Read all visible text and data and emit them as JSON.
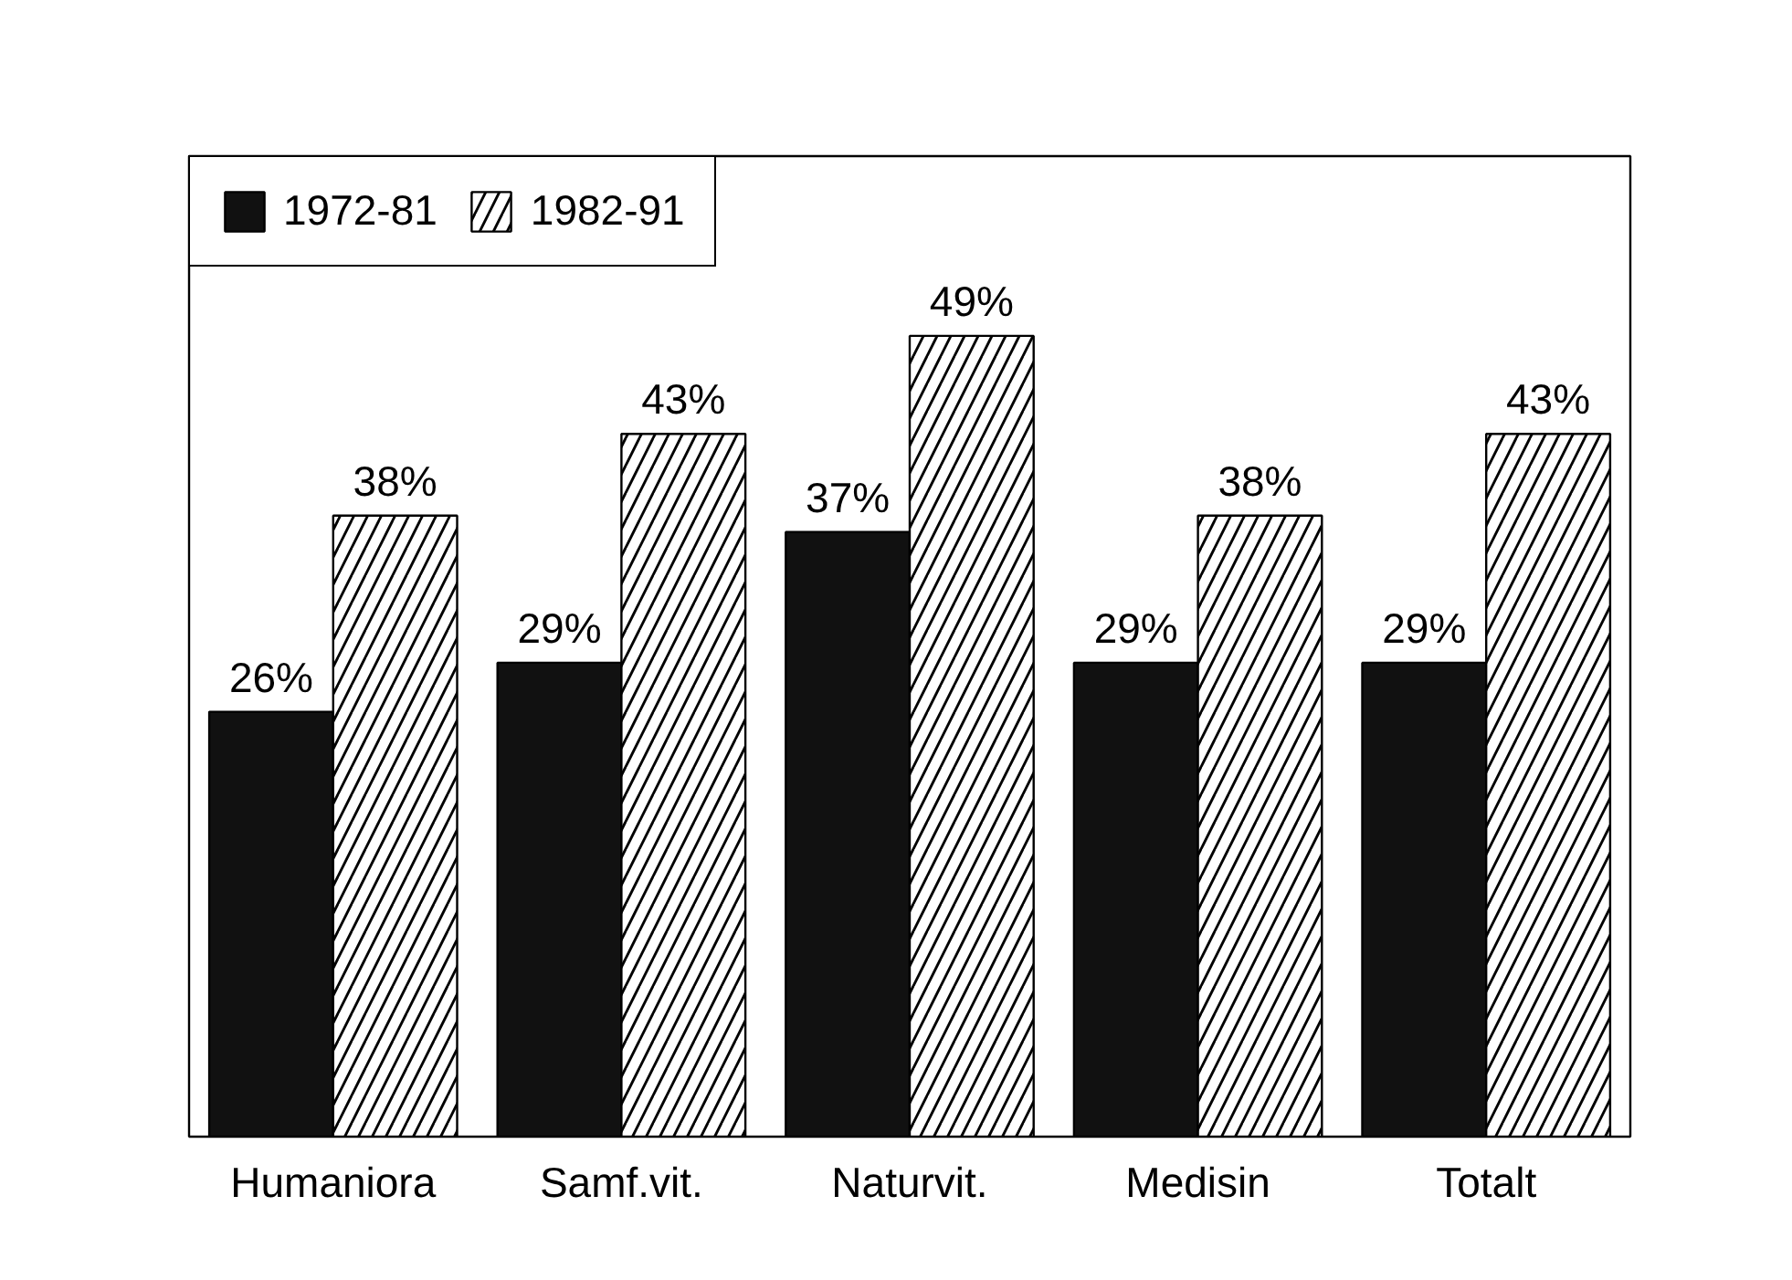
{
  "chart_data": {
    "type": "bar",
    "categories": [
      "Humaniora",
      "Samf.vit.",
      "Naturvit.",
      "Medisin",
      "Totalt"
    ],
    "series": [
      {
        "name": "1972-81",
        "color": "#111111",
        "values": [
          26,
          29,
          37,
          29,
          29
        ],
        "value_labels": [
          "26%",
          "29%",
          "37%",
          "29%",
          "29%"
        ]
      },
      {
        "name": "1982-91",
        "color": "#ffffff",
        "values": [
          38,
          43,
          49,
          38,
          43
        ],
        "value_labels": [
          "38%",
          "43%",
          "49%",
          "38%",
          "43%"
        ]
      }
    ],
    "ylim": [
      0,
      60
    ],
    "legend": "top left",
    "tick_labels": "x",
    "grid": false
  }
}
